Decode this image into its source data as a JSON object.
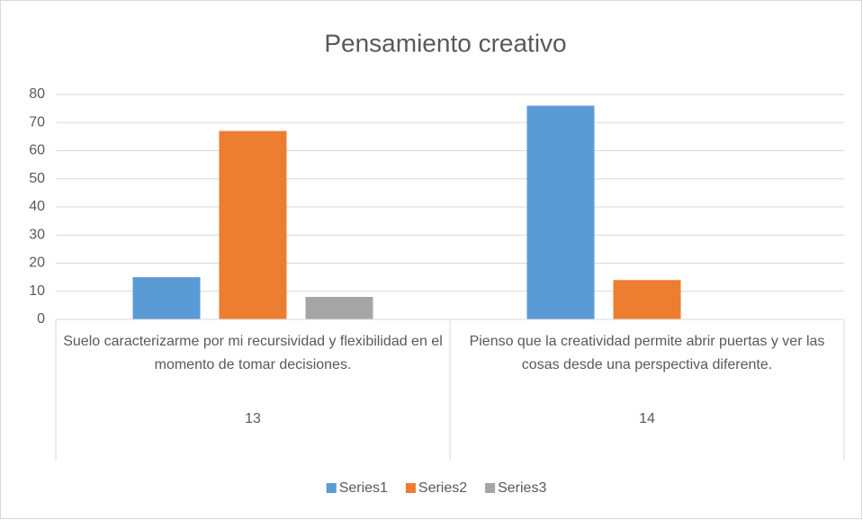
{
  "chart_data": {
    "type": "bar",
    "title": "Pensamiento creativo",
    "categories": [
      "Suelo caracterizarme por mi recursividad y flexibilidad en el momento de tomar decisiones.",
      "Pienso que la creatividad permite abrir puertas y ver las cosas desde una perspectiva diferente."
    ],
    "category_groups": [
      "13",
      "14"
    ],
    "series": [
      {
        "name": "Series1",
        "color": "#5b9bd5",
        "values": [
          15,
          76
        ]
      },
      {
        "name": "Series2",
        "color": "#ed7d31",
        "values": [
          67,
          14
        ]
      },
      {
        "name": "Series3",
        "color": "#a5a5a5",
        "values": [
          8,
          0
        ]
      }
    ],
    "ylim": [
      0,
      80
    ],
    "yticks": [
      0,
      10,
      20,
      30,
      40,
      50,
      60,
      70,
      80
    ],
    "grid": true,
    "legend": "bottom"
  }
}
